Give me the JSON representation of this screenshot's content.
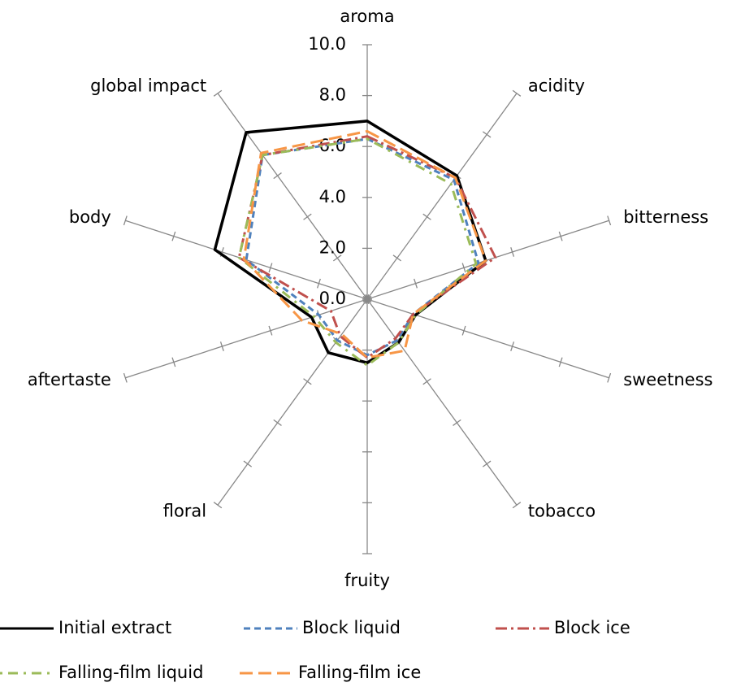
{
  "chart_data": {
    "type": "radar",
    "categories": [
      "aroma",
      "acidity",
      "bitterness",
      "sweetness",
      "tobacco",
      "fruity",
      "floral",
      "aftertaste",
      "body",
      "global impact"
    ],
    "ylim": [
      0,
      10
    ],
    "yticks": [
      {
        "value": 0,
        "label": "0.0"
      },
      {
        "value": 2,
        "label": "2.0"
      },
      {
        "value": 4,
        "label": "4.0"
      },
      {
        "value": 6,
        "label": "6.0"
      },
      {
        "value": 8,
        "label": "8.0"
      },
      {
        "value": 10,
        "label": "10.0"
      }
    ],
    "series": [
      {
        "name": "Initial extract",
        "color": "#000000",
        "values": [
          7.0,
          6.0,
          4.9,
          2.0,
          2.1,
          2.5,
          2.6,
          2.3,
          6.3,
          8.1
        ]
      },
      {
        "name": "Block liquid",
        "color": "#4f81bd",
        "values": [
          6.3,
          5.8,
          4.6,
          1.9,
          2.0,
          2.2,
          2.0,
          2.0,
          5.0,
          7.0
        ]
      },
      {
        "name": "Block ice",
        "color": "#c0504d",
        "values": [
          6.4,
          5.9,
          5.3,
          1.9,
          1.9,
          2.3,
          1.8,
          1.5,
          5.3,
          7.0
        ]
      },
      {
        "name": "Falling-film liquid",
        "color": "#9bbb59",
        "values": [
          6.3,
          5.6,
          4.5,
          2.0,
          2.1,
          2.6,
          2.1,
          2.2,
          5.3,
          7.0
        ]
      },
      {
        "name": "Falling-film ice",
        "color": "#f79646",
        "values": [
          6.6,
          5.9,
          4.9,
          1.9,
          2.5,
          2.3,
          1.7,
          2.7,
          5.1,
          7.1
        ]
      }
    ]
  }
}
